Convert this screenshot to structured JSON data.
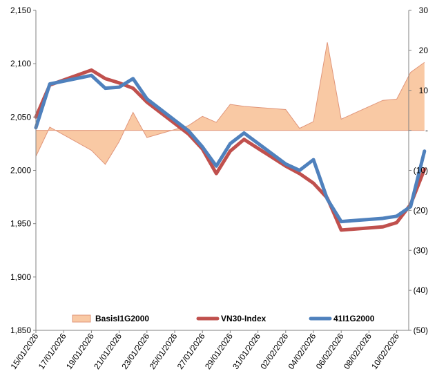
{
  "chart_data": {
    "type": "line",
    "y_left": {
      "range": [
        1850,
        2150
      ],
      "ticks": [
        "1,850",
        "1,900",
        "1,950",
        "2,000",
        "2,050",
        "2,100",
        "2,150"
      ],
      "tick_values": [
        1850,
        1900,
        1950,
        2000,
        2050,
        2100,
        2150
      ]
    },
    "y_right": {
      "range": [
        -50,
        30
      ],
      "ticks": [
        "(50)",
        "(40)",
        "(30)",
        "(20)",
        "(10)",
        "-",
        "10",
        "20",
        "30"
      ],
      "tick_values": [
        -50,
        -40,
        -30,
        -20,
        -10,
        0,
        10,
        20,
        30
      ]
    },
    "x_tick_labels": [
      "15/01/2026",
      "17/01/2026",
      "19/01/2026",
      "21/01/2026",
      "23/01/2026",
      "25/01/2026",
      "27/01/2026",
      "29/01/2026",
      "31/01/2026",
      "02/02/2026",
      "04/02/2026",
      "06/02/2026",
      "08/02/2026",
      "10/02/2026"
    ],
    "x_dates": [
      "2026-01-15",
      "2026-01-16",
      "2026-01-19",
      "2026-01-20",
      "2026-01-21",
      "2026-01-22",
      "2026-01-23",
      "2026-01-26",
      "2026-01-27",
      "2026-01-28",
      "2026-01-29",
      "2026-01-30",
      "2026-02-02",
      "2026-02-03",
      "2026-02-04",
      "2026-02-05",
      "2026-02-06",
      "2026-02-09",
      "2026-02-10",
      "2026-02-11",
      "2026-02-12"
    ],
    "series": [
      {
        "name": "BasisI1G2000",
        "type": "area",
        "axis": "right",
        "color": "#F9C9A4",
        "edge_color": "#E0957A",
        "values": [
          -6.5,
          0.8,
          -5.0,
          -8.5,
          -2.8,
          4.5,
          -1.8,
          1.2,
          3.5,
          2.0,
          6.5,
          6.0,
          5.2,
          0.5,
          2.2,
          22.0,
          2.8,
          7.5,
          7.8,
          14.5,
          17.0
        ]
      },
      {
        "name": "VN30-Index",
        "type": "line",
        "axis": "left",
        "color": "#C0504D",
        "values": [
          2050,
          2080,
          2094,
          2086,
          2082,
          2077,
          2064,
          2034,
          2020,
          1997,
          2018,
          2029,
          2004,
          1997,
          1988,
          1974,
          1944,
          1947,
          1951,
          1968,
          2001
        ]
      },
      {
        "name": "41I1G2000",
        "type": "line",
        "axis": "left",
        "color": "#4F81BD",
        "values": [
          2040,
          2081,
          2089,
          2077,
          2078,
          2086,
          2067,
          2037,
          2022,
          2004,
          2025,
          2035,
          2006,
          2000,
          2010,
          1973,
          1952,
          1955,
          1957,
          1966,
          2018
        ]
      }
    ],
    "legend": {
      "position": "bottom",
      "items": [
        "BasisI1G2000",
        "VN30-Index",
        "41I1G2000"
      ]
    },
    "grid": false
  }
}
